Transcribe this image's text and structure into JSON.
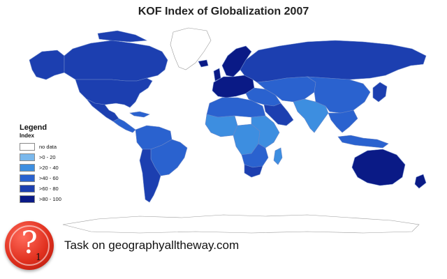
{
  "slide": {
    "title": "KOF Index of Globalization 2007",
    "caption": "Task on geographyalltheway.com",
    "task_icon": {
      "name": "question-mark-icon",
      "symbol": "?",
      "number": "1"
    }
  },
  "legend": {
    "title": "Legend",
    "subtitle": "Index",
    "items": [
      {
        "label": "no data",
        "color": "#ffffff"
      },
      {
        "label": ">0 - 20",
        "color": "#7ab8ec"
      },
      {
        "label": ">20 - 40",
        "color": "#3d8ee0"
      },
      {
        "label": ">40 - 60",
        "color": "#2a62cf"
      },
      {
        "label": ">60 - 80",
        "color": "#1c3fb0"
      },
      {
        "label": ">80 - 100",
        "color": "#0a1a86"
      }
    ]
  },
  "map_regions": [
    {
      "name": "canada",
      "class": ">60 - 80"
    },
    {
      "name": "alaska",
      "class": ">60 - 80"
    },
    {
      "name": "usa",
      "class": ">60 - 80"
    },
    {
      "name": "mexico",
      "class": ">60 - 80"
    },
    {
      "name": "central-america",
      "class": ">40 - 60"
    },
    {
      "name": "south-america-north",
      "class": ">40 - 60"
    },
    {
      "name": "brazil",
      "class": ">40 - 60"
    },
    {
      "name": "southern-cone",
      "class": ">60 - 80"
    },
    {
      "name": "greenland",
      "class": "no data"
    },
    {
      "name": "europe",
      "class": ">80 - 100"
    },
    {
      "name": "scandinavia",
      "class": ">80 - 100"
    },
    {
      "name": "russia",
      "class": ">60 - 80"
    },
    {
      "name": "north-africa",
      "class": ">40 - 60"
    },
    {
      "name": "west-africa",
      "class": ">20 - 40"
    },
    {
      "name": "central-africa",
      "class": ">20 - 40"
    },
    {
      "name": "east-africa",
      "class": ">20 - 40"
    },
    {
      "name": "southern-africa",
      "class": ">40 - 60"
    },
    {
      "name": "south-africa",
      "class": ">60 - 80"
    },
    {
      "name": "madagascar",
      "class": ">20 - 40"
    },
    {
      "name": "middle-east",
      "class": ">40 - 60"
    },
    {
      "name": "arabia",
      "class": ">60 - 80"
    },
    {
      "name": "central-asia",
      "class": ">40 - 60"
    },
    {
      "name": "south-asia",
      "class": ">20 - 40"
    },
    {
      "name": "china",
      "class": ">40 - 60"
    },
    {
      "name": "japan-korea",
      "class": ">60 - 80"
    },
    {
      "name": "southeast-asia",
      "class": ">40 - 60"
    },
    {
      "name": "indonesia",
      "class": ">40 - 60"
    },
    {
      "name": "australia",
      "class": ">80 - 100"
    },
    {
      "name": "new-zealand",
      "class": ">80 - 100"
    },
    {
      "name": "antarctica",
      "class": "no data"
    }
  ]
}
